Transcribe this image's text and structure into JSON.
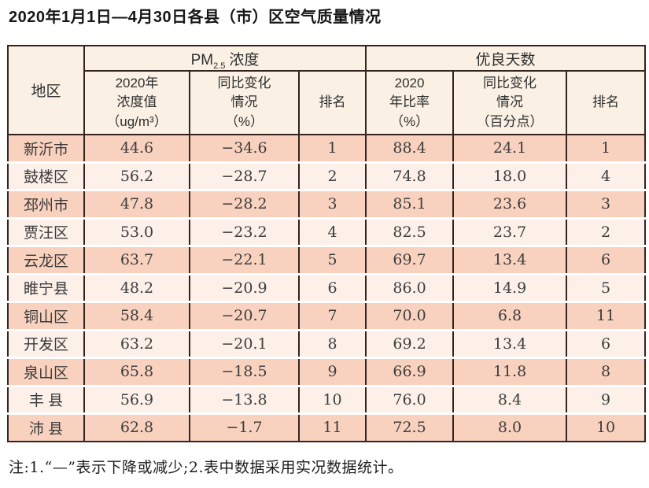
{
  "page": {
    "title": "2020年1月1日—4月30日各县（市）区空气质量情况",
    "footnote": "注:1.“—”表示下降或减少;2.表中数据采用实况数据统计。"
  },
  "colors": {
    "table_border": "#352320",
    "header_bg": "#faf0e4",
    "row_dark_bg": "#f9d2bf",
    "row_light_bg": "#fcf0e9",
    "row_separator": "#ffffff"
  },
  "table": {
    "region_header": "地区",
    "pm_group": {
      "prefix": "PM",
      "sub": "2.5",
      "label": "浓度"
    },
    "good_group_label": "优良天数",
    "subheaders": {
      "pm_value": "2020年\n浓度值\n（ug/m³）",
      "pm_change": "同比变化\n情况\n（%）",
      "pm_rank": "排名",
      "good_ratio": "2020\n年比率\n（%）",
      "good_change": "同比变化\n情况\n（百分点）",
      "good_rank": "排名"
    },
    "column_names": [
      "region",
      "pm-value",
      "pm-change",
      "pm-rank",
      "good-ratio",
      "good-change",
      "good-rank"
    ],
    "rows": [
      [
        "新沂市",
        "44.6",
        "−34.6",
        "1",
        "88.4",
        "24.1",
        "1"
      ],
      [
        "鼓楼区",
        "56.2",
        "−28.7",
        "2",
        "74.8",
        "18.0",
        "4"
      ],
      [
        "邳州市",
        "47.8",
        "−28.2",
        "3",
        "85.1",
        "23.6",
        "3"
      ],
      [
        "贾汪区",
        "53.0",
        "−23.2",
        "4",
        "82.5",
        "23.7",
        "2"
      ],
      [
        "云龙区",
        "63.7",
        "−22.1",
        "5",
        "69.7",
        "13.4",
        "6"
      ],
      [
        "睢宁县",
        "48.2",
        "−20.9",
        "6",
        "86.0",
        "14.9",
        "5"
      ],
      [
        "铜山区",
        "58.4",
        "−20.7",
        "7",
        "70.0",
        "6.8",
        "11"
      ],
      [
        "开发区",
        "63.2",
        "−20.1",
        "8",
        "69.2",
        "13.4",
        "6"
      ],
      [
        "泉山区",
        "65.8",
        "−18.5",
        "9",
        "66.9",
        "11.8",
        "8"
      ],
      [
        "丰 县",
        "56.9",
        "−13.8",
        "10",
        "76.0",
        "8.4",
        "9"
      ],
      [
        "沛 县",
        "62.8",
        "−1.7",
        "11",
        "72.5",
        "8.0",
        "10"
      ]
    ]
  }
}
